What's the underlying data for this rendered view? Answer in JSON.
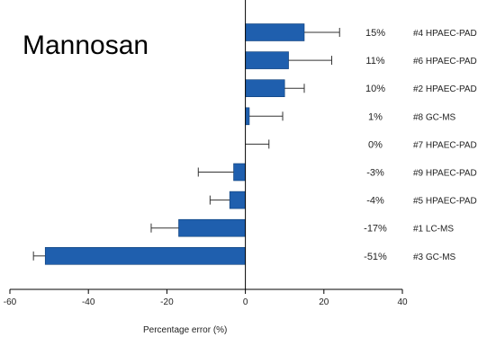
{
  "chart_data": {
    "type": "bar",
    "orientation": "horizontal",
    "title": "Mannosan",
    "xlabel": "Percentage error (%)",
    "xlim": [
      -60,
      40
    ],
    "xticks": [
      -60,
      -40,
      -20,
      0,
      20,
      40
    ],
    "bar_color": "#1f5fae",
    "error_color": "#333333",
    "categories": [
      "#4 HPAEC-PAD",
      "#6 HPAEC-PAD",
      "#2 HPAEC-PAD",
      "#8 GC-MS",
      "#7 HPAEC-PAD",
      "#9 HPAEC-PAD",
      "#5 HPAEC-PAD",
      "#1 LC-MS",
      "#3 GC-MS"
    ],
    "labels": [
      "15%",
      "11%",
      "10%",
      "1%",
      "0%",
      "-3%",
      "-4%",
      "-17%",
      "-51%"
    ],
    "values": [
      15,
      11,
      10,
      1,
      0,
      -3,
      -4,
      -17,
      -51
    ],
    "errors": [
      9,
      11,
      5,
      8.5,
      6,
      9,
      5,
      7,
      3
    ]
  }
}
